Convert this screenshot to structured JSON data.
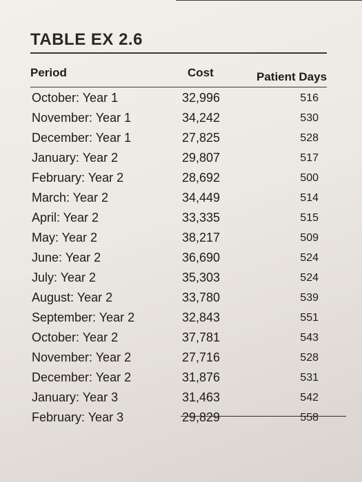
{
  "table": {
    "title": "TABLE EX 2.6",
    "headers": {
      "period": "Period",
      "cost": "Cost",
      "days": "Patient Days"
    },
    "rows": [
      {
        "period": "October: Year 1",
        "cost": "32,996",
        "days": "516"
      },
      {
        "period": "November: Year 1",
        "cost": "34,242",
        "days": "530"
      },
      {
        "period": "December: Year 1",
        "cost": "27,825",
        "days": "528"
      },
      {
        "period": "January: Year 2",
        "cost": "29,807",
        "days": "517"
      },
      {
        "period": "February: Year 2",
        "cost": "28,692",
        "days": "500"
      },
      {
        "period": "March: Year 2",
        "cost": "34,449",
        "days": "514"
      },
      {
        "period": "April: Year 2",
        "cost": "33,335",
        "days": "515"
      },
      {
        "period": "May: Year 2",
        "cost": "38,217",
        "days": "509"
      },
      {
        "period": "June: Year 2",
        "cost": "36,690",
        "days": "524"
      },
      {
        "period": "July: Year 2",
        "cost": "35,303",
        "days": "524"
      },
      {
        "period": "August: Year 2",
        "cost": "33,780",
        "days": "539"
      },
      {
        "period": "September: Year 2",
        "cost": "32,843",
        "days": "551"
      },
      {
        "period": "October: Year 2",
        "cost": "37,781",
        "days": "543"
      },
      {
        "period": "November: Year 2",
        "cost": "27,716",
        "days": "528"
      },
      {
        "period": "December: Year 2",
        "cost": "31,876",
        "days": "531"
      },
      {
        "period": "January: Year 3",
        "cost": "31,463",
        "days": "542"
      },
      {
        "period": "February: Year 3",
        "cost": "29,829",
        "days": "558"
      }
    ]
  }
}
